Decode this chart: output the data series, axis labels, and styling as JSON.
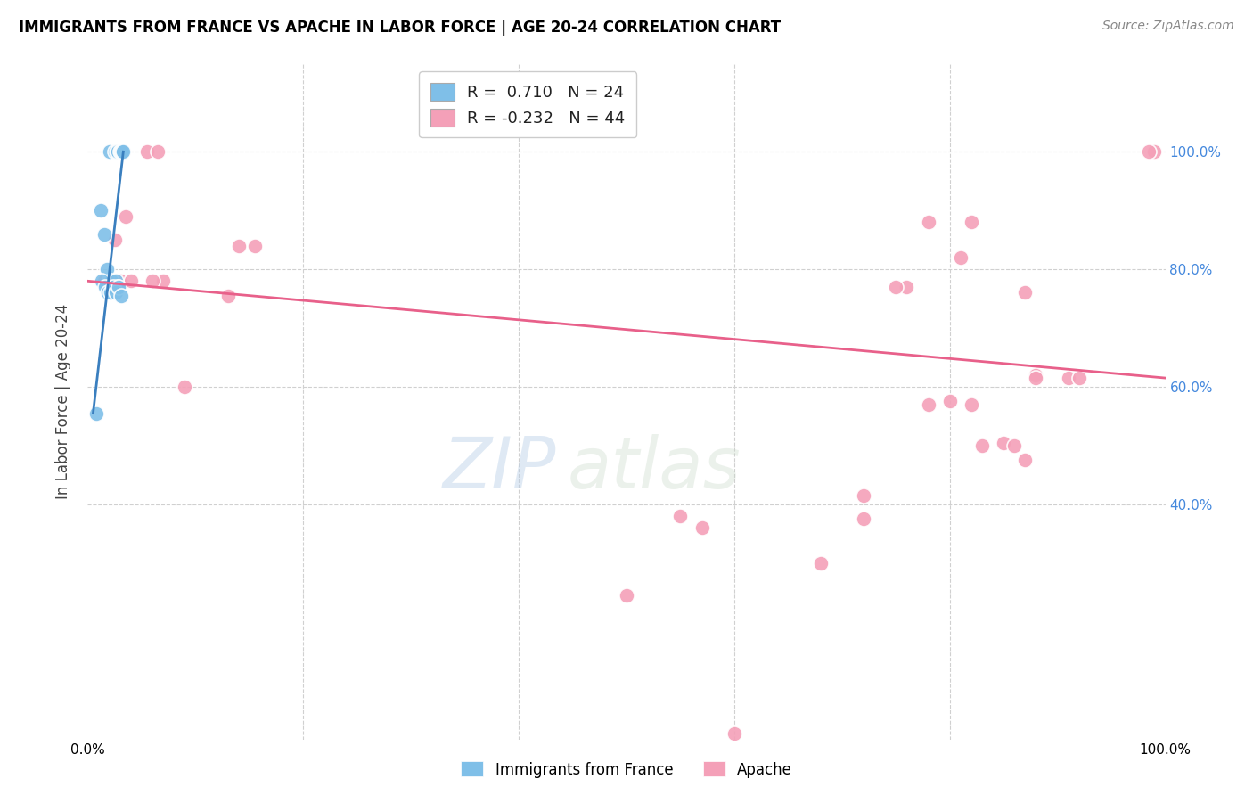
{
  "title": "IMMIGRANTS FROM FRANCE VS APACHE IN LABOR FORCE | AGE 20-24 CORRELATION CHART",
  "source": "Source: ZipAtlas.com",
  "ylabel": "In Labor Force | Age 20-24",
  "x_min": 0.0,
  "x_max": 1.0,
  "y_min": 0.0,
  "y_max": 1.15,
  "x_ticks": [
    0.0,
    0.2,
    0.4,
    0.6,
    0.8,
    1.0
  ],
  "x_tick_labels": [
    "0.0%",
    "",
    "",
    "",
    "",
    "100.0%"
  ],
  "y_ticks_right": [
    0.4,
    0.6,
    0.8,
    1.0
  ],
  "y_tick_labels_right": [
    "40.0%",
    "60.0%",
    "80.0%",
    "100.0%"
  ],
  "blue_scatter_x": [
    0.02,
    0.025,
    0.027,
    0.028,
    0.03,
    0.031,
    0.032,
    0.033,
    0.012,
    0.015,
    0.018,
    0.022,
    0.025,
    0.026,
    0.028,
    0.013,
    0.016,
    0.019,
    0.021,
    0.024,
    0.026,
    0.029,
    0.031,
    0.008
  ],
  "blue_scatter_y": [
    1.0,
    1.0,
    1.0,
    1.0,
    1.0,
    1.0,
    1.0,
    1.0,
    0.9,
    0.86,
    0.8,
    0.78,
    0.77,
    0.78,
    0.77,
    0.78,
    0.77,
    0.76,
    0.76,
    0.77,
    0.76,
    0.77,
    0.755,
    0.555
  ],
  "pink_scatter_x": [
    0.055,
    0.065,
    0.035,
    0.025,
    0.14,
    0.155,
    0.07,
    0.015,
    0.02,
    0.02,
    0.025,
    0.025,
    0.025,
    0.03,
    0.04,
    0.13,
    0.99,
    0.985,
    0.82,
    0.78,
    0.81,
    0.76,
    0.75,
    0.87,
    0.88,
    0.88,
    0.91,
    0.92,
    0.78,
    0.8,
    0.82,
    0.83,
    0.85,
    0.86,
    0.87,
    0.72,
    0.72,
    0.68,
    0.5,
    0.55,
    0.57,
    0.6,
    0.06,
    0.09
  ],
  "pink_scatter_y": [
    1.0,
    1.0,
    0.89,
    0.85,
    0.84,
    0.84,
    0.78,
    0.78,
    0.78,
    0.78,
    0.78,
    0.78,
    0.78,
    0.78,
    0.78,
    0.755,
    1.0,
    1.0,
    0.88,
    0.88,
    0.82,
    0.77,
    0.77,
    0.76,
    0.62,
    0.615,
    0.615,
    0.615,
    0.57,
    0.575,
    0.57,
    0.5,
    0.505,
    0.5,
    0.475,
    0.415,
    0.375,
    0.3,
    0.245,
    0.38,
    0.36,
    0.01,
    0.78,
    0.6
  ],
  "blue_line_x": [
    0.005,
    0.033
  ],
  "blue_line_y": [
    0.555,
    1.0
  ],
  "pink_line_x": [
    0.0,
    1.0
  ],
  "pink_line_y": [
    0.78,
    0.615
  ],
  "blue_color": "#7fbfe8",
  "pink_color": "#f4a0b8",
  "blue_line_color": "#3a7fbf",
  "pink_line_color": "#e8608a",
  "watermark_zip": "ZIP",
  "watermark_atlas": "atlas",
  "background_color": "#ffffff",
  "grid_color": "#d0d0d0"
}
